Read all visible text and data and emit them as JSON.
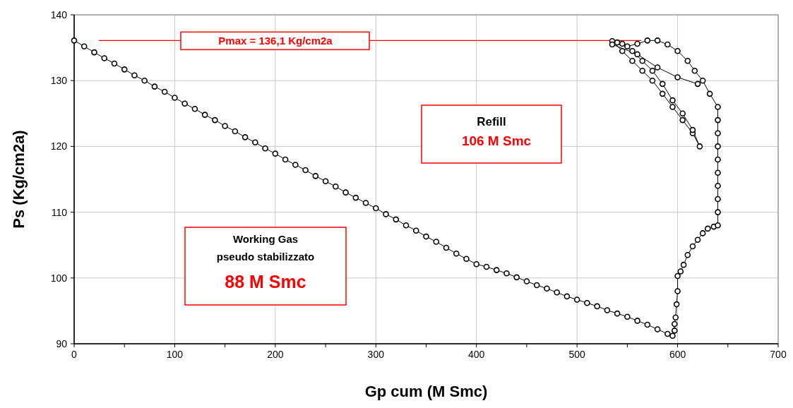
{
  "chart_data": {
    "type": "line",
    "xlabel": "Gp cum (M Smc)",
    "ylabel": "Ps (Kg/cm2a)",
    "xlim": [
      0,
      700
    ],
    "ylim": [
      90,
      140
    ],
    "xticks": [
      0,
      {
        "value": 50,
        "label": null
      },
      100,
      {
        "value": 150,
        "label": null
      },
      200,
      {
        "value": 250,
        "label": null
      },
      300,
      {
        "value": 350,
        "label": null
      },
      400,
      {
        "value": 450,
        "label": null
      },
      500,
      {
        "value": 550,
        "label": null
      },
      600,
      {
        "value": 650,
        "label": null
      },
      700
    ],
    "yticks": [
      90,
      100,
      110,
      120,
      130,
      140
    ],
    "grid": true,
    "marker": "circle",
    "line_style": "solid",
    "ref_lines": [
      {
        "axis": "y",
        "value": 136.1,
        "label": "Pmax = 136,1 Kg/cm2a",
        "color": "#ff0000"
      }
    ],
    "annotations": [
      "Refill",
      "106 M Smc",
      "Working Gas",
      "pseudo stabilizzato",
      "88 M Smc"
    ],
    "series": [
      {
        "color": "#000000",
        "x": [
          0,
          10,
          20,
          30,
          40,
          50,
          60,
          70,
          80,
          90,
          100,
          110,
          120,
          130,
          140,
          150,
          160,
          170,
          180,
          190,
          200,
          210,
          220,
          230,
          240,
          250,
          260,
          270,
          280,
          290,
          300,
          310,
          320,
          330,
          340,
          350,
          360,
          370,
          380,
          390,
          400,
          410,
          420,
          430,
          440,
          450,
          460,
          470,
          480,
          490,
          500,
          510,
          520,
          530,
          540,
          550,
          560,
          570,
          580,
          590,
          595,
          597,
          597,
          598,
          599,
          600,
          600,
          603,
          606,
          610,
          615,
          620,
          625,
          630,
          636,
          640,
          640,
          640,
          640,
          640,
          640,
          640,
          640,
          640,
          640,
          632,
          625,
          617,
          610,
          600,
          590,
          580,
          570,
          560,
          550,
          540,
          535,
          545,
          555,
          565,
          575,
          585,
          595,
          605,
          615,
          622,
          615,
          605,
          595,
          585,
          575,
          565,
          555,
          545,
          535,
          560,
          580,
          600,
          620
        ],
        "values": [
          136.1,
          135.2,
          134.3,
          133.4,
          132.6,
          131.7,
          130.8,
          130.0,
          129.1,
          128.3,
          127.4,
          126.5,
          125.7,
          124.8,
          124.0,
          123.1,
          122.3,
          121.4,
          120.6,
          119.7,
          118.9,
          118.0,
          117.2,
          116.4,
          115.5,
          114.7,
          113.9,
          113.0,
          112.2,
          111.4,
          110.6,
          109.7,
          108.9,
          108.0,
          107.2,
          106.3,
          105.5,
          104.6,
          103.7,
          102.9,
          102.1,
          101.7,
          101.2,
          100.7,
          100.1,
          99.5,
          98.9,
          98.4,
          97.8,
          97.2,
          96.7,
          96.2,
          95.7,
          95.1,
          94.6,
          94.1,
          93.5,
          92.9,
          92.2,
          91.5,
          91.2,
          92,
          93,
          94,
          96,
          98,
          100.3,
          101,
          102,
          103.5,
          104.8,
          105.8,
          106.8,
          107.5,
          107.8,
          108,
          110,
          112,
          114,
          116,
          118,
          120,
          122,
          124,
          126,
          128,
          130,
          131.5,
          133,
          134.5,
          135.5,
          136.1,
          136.1,
          135.6,
          135.2,
          135.8,
          136,
          134.5,
          133,
          131.5,
          130,
          128,
          126,
          124,
          122,
          120,
          122.5,
          125,
          127,
          129.5,
          131.5,
          133,
          134.5,
          135.6,
          135.5,
          134,
          132,
          130.5,
          129.5
        ]
      }
    ]
  }
}
